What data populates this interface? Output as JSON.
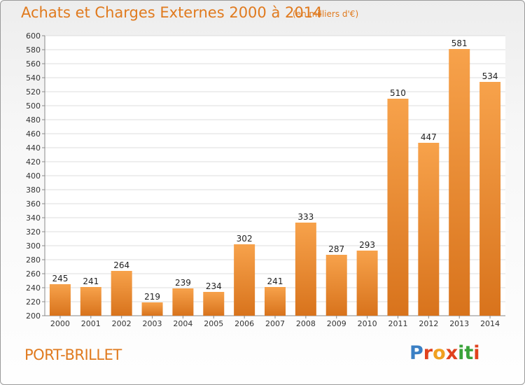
{
  "title": "Achats et Charges Externes 2000 à 2014",
  "subtitle": "(en milliers d'€)",
  "place": "PORT-BRILLET",
  "logo": "Proxiti",
  "colors": {
    "accent": "#e07a1e",
    "bar_light": "#f7a24b",
    "bar_dark": "#d8731c",
    "logo_letters": [
      "#3a7fc4",
      "#e0421e",
      "#f0a020",
      "#e0421e",
      "#3aa33a",
      "#3aa33a",
      "#e0421e"
    ]
  },
  "chart_data": {
    "type": "bar",
    "categories": [
      "2000",
      "2001",
      "2002",
      "2003",
      "2004",
      "2005",
      "2006",
      "2007",
      "2008",
      "2009",
      "2010",
      "2011",
      "2012",
      "2013",
      "2014"
    ],
    "values": [
      245,
      241,
      264,
      219,
      239,
      234,
      302,
      241,
      333,
      287,
      293,
      510,
      447,
      581,
      534
    ],
    "ylim": [
      200,
      600
    ],
    "yticks": [
      200,
      220,
      240,
      260,
      280,
      300,
      320,
      340,
      360,
      380,
      400,
      420,
      440,
      460,
      480,
      500,
      520,
      540,
      560,
      580,
      600
    ],
    "grid": true,
    "xlabel": "",
    "ylabel": ""
  }
}
